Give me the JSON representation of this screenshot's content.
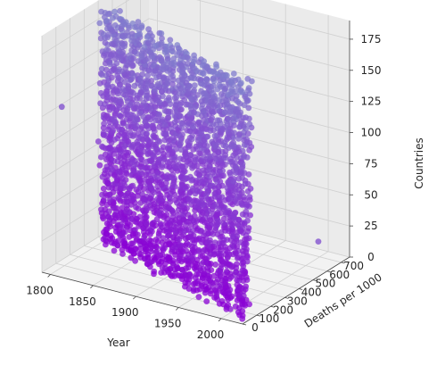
{
  "chart_data": {
    "type": "scatter",
    "projection": "3d",
    "title": "",
    "xlabel": "Year",
    "ylabel": "Deaths per 1000",
    "zlabel": "Countries",
    "xlim": [
      1790,
      2025
    ],
    "ylim": [
      0,
      760
    ],
    "zlim": [
      0,
      190
    ],
    "x_ticks": [
      "1800",
      "1850",
      "1900",
      "1950",
      "2000"
    ],
    "y_ticks": [
      "0",
      "100",
      "200",
      "300",
      "400",
      "500",
      "600",
      "700"
    ],
    "z_ticks": [
      "0",
      "25",
      "50",
      "75",
      "100",
      "125",
      "150",
      "175"
    ],
    "grid": true,
    "color_low": "#8a00d4",
    "color_high": "#7f8ccc",
    "series_description_values": {
      "x_range": [
        1800,
        2018
      ],
      "y_typical_range": [
        0,
        450
      ],
      "z_range": [
        0,
        185
      ]
    },
    "outliers": [
      {
        "x": 1810,
        "y": 20,
        "z": 135
      },
      {
        "x": 1995,
        "y": 720,
        "z": 10
      }
    ]
  }
}
